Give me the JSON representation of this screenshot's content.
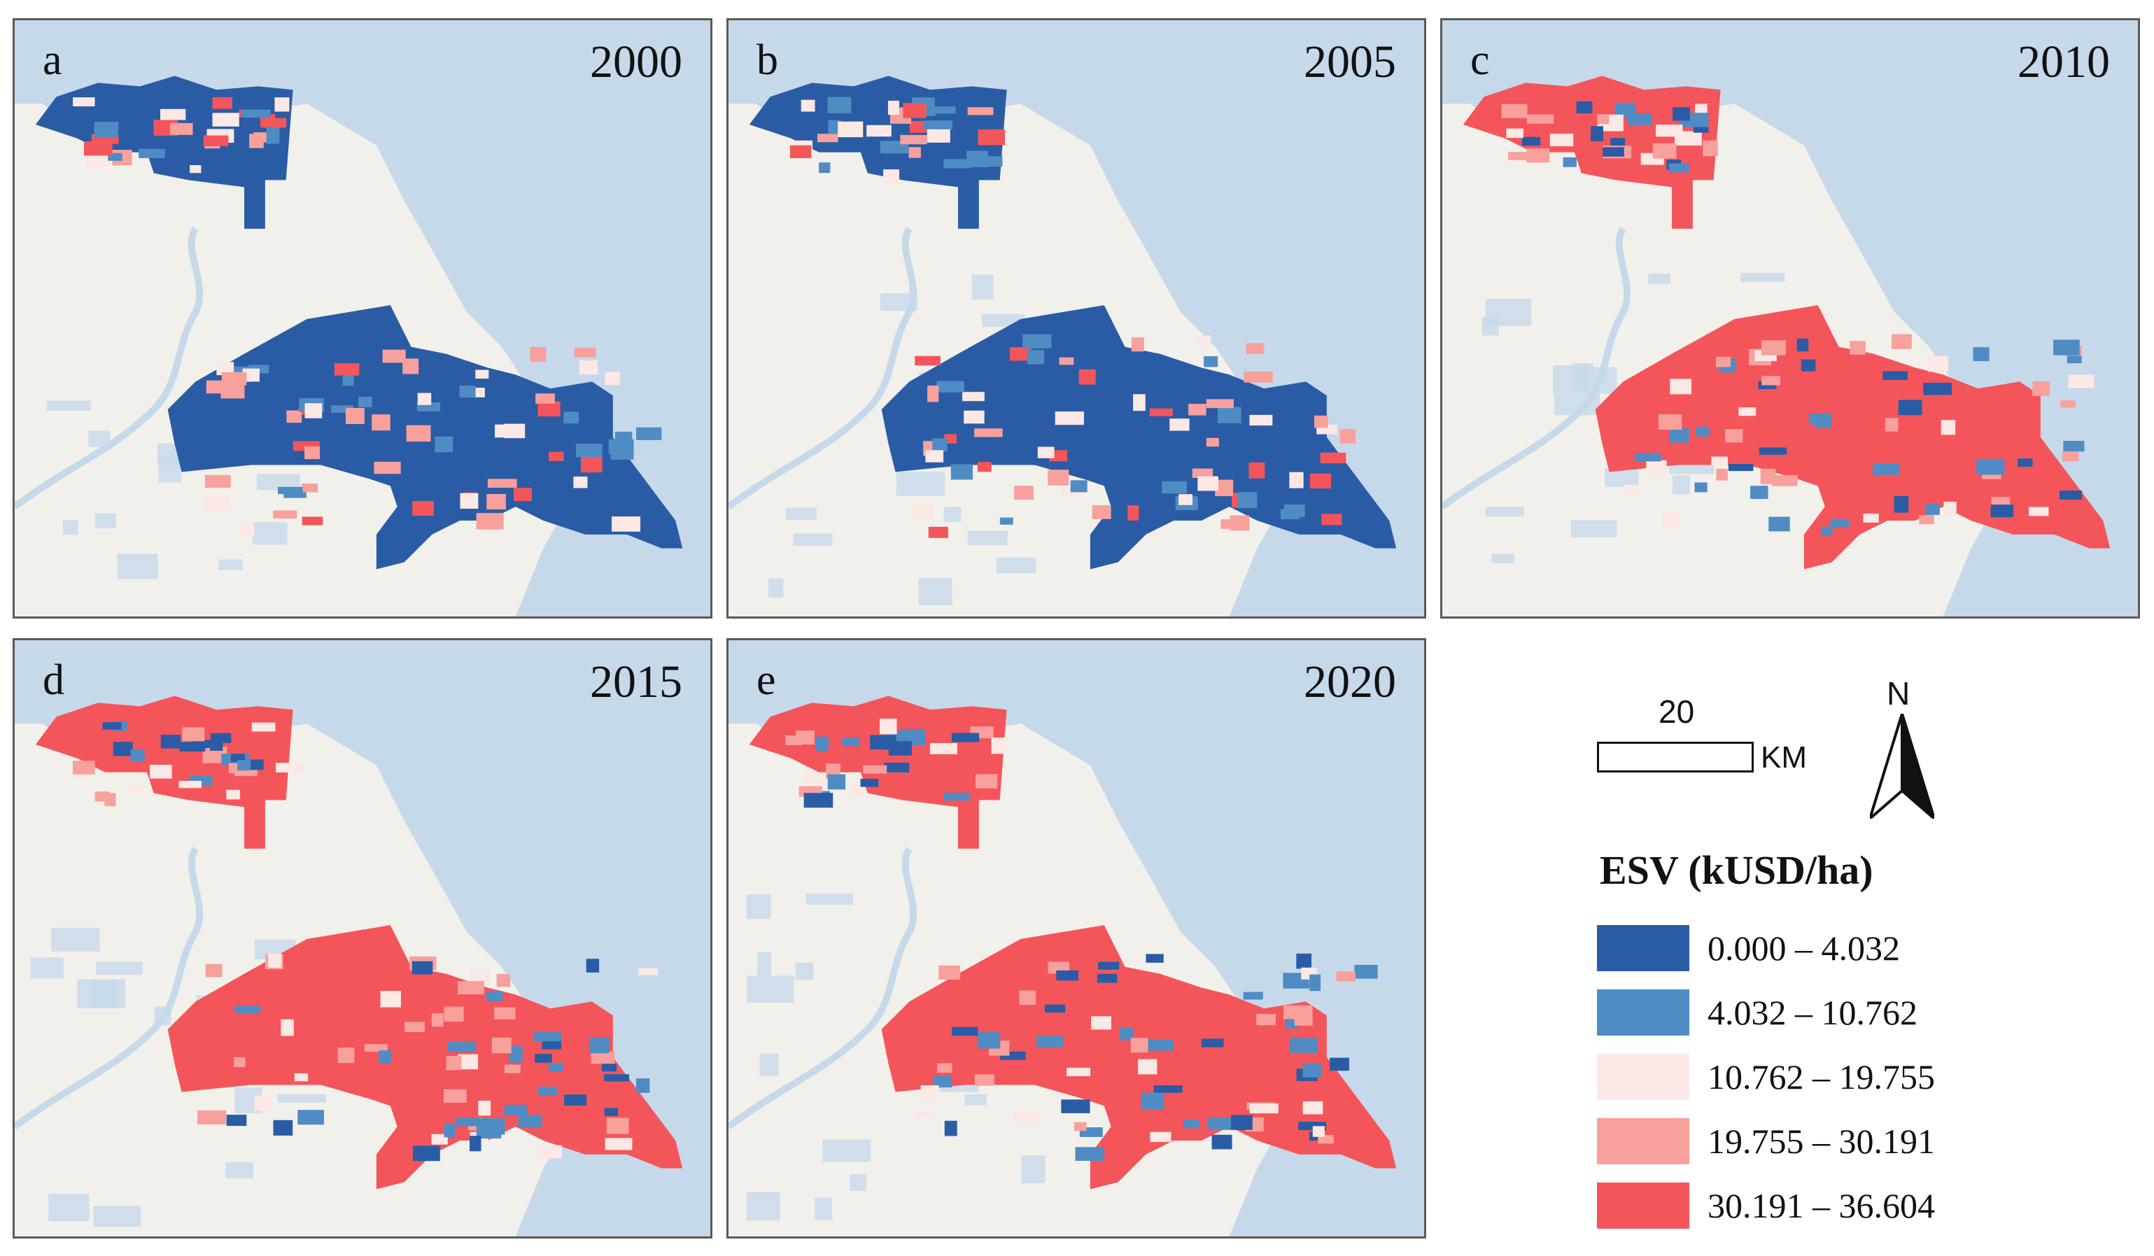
{
  "figure": {
    "panels": [
      {
        "letter": "a",
        "year": "2000",
        "dominant": "low"
      },
      {
        "letter": "b",
        "year": "2005",
        "dominant": "low"
      },
      {
        "letter": "c",
        "year": "2010",
        "dominant": "high"
      },
      {
        "letter": "d",
        "year": "2015",
        "dominant": "high"
      },
      {
        "letter": "e",
        "year": "2020",
        "dominant": "high"
      }
    ],
    "colors": {
      "water": "#c6d9ea",
      "land": "#f2f0ea",
      "class1": "#2a5ca6",
      "class2": "#4f8cc4",
      "class3": "#fce8e4",
      "class4": "#f8a09c",
      "class5": "#f4555a"
    }
  },
  "scale": {
    "value": "20",
    "unit": "KM"
  },
  "north": {
    "label": "N"
  },
  "legend": {
    "title": "ESV (kUSD/ha)",
    "items": [
      {
        "label": "0.000 – 4.032",
        "color": "#2a5ca6"
      },
      {
        "label": "4.032 – 10.762",
        "color": "#4f8cc4"
      },
      {
        "label": "10.762 – 19.755",
        "color": "#fce8e4"
      },
      {
        "label": "19.755 – 30.191",
        "color": "#f8a09c"
      },
      {
        "label": "30.191 – 36.604",
        "color": "#f4555a"
      }
    ]
  }
}
